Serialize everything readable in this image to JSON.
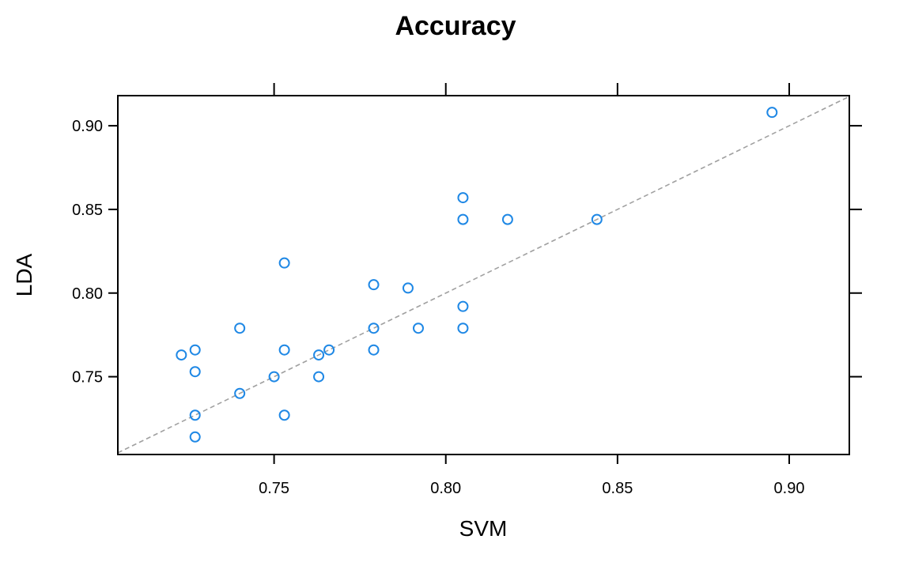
{
  "chart_data": {
    "type": "scatter",
    "title": "Accuracy",
    "xlabel": "SVM",
    "ylabel": "LDA",
    "xlim": [
      0.7045,
      0.9175
    ],
    "ylim": [
      0.7035,
      0.918
    ],
    "x_ticks": [
      "0.75",
      "0.80",
      "0.85",
      "0.90"
    ],
    "y_ticks": [
      "0.75",
      "0.80",
      "0.85",
      "0.90"
    ],
    "grid": false,
    "reference_line": "y = x (dashed)",
    "colors": {
      "points": "#1f88e5",
      "reference_line": "#a0a0a0"
    },
    "points": [
      {
        "x": 0.895,
        "y": 0.908
      },
      {
        "x": 0.805,
        "y": 0.857
      },
      {
        "x": 0.805,
        "y": 0.844
      },
      {
        "x": 0.818,
        "y": 0.844
      },
      {
        "x": 0.844,
        "y": 0.844
      },
      {
        "x": 0.753,
        "y": 0.818
      },
      {
        "x": 0.779,
        "y": 0.805
      },
      {
        "x": 0.789,
        "y": 0.803
      },
      {
        "x": 0.805,
        "y": 0.792
      },
      {
        "x": 0.74,
        "y": 0.779
      },
      {
        "x": 0.779,
        "y": 0.779
      },
      {
        "x": 0.792,
        "y": 0.779
      },
      {
        "x": 0.805,
        "y": 0.779
      },
      {
        "x": 0.727,
        "y": 0.766
      },
      {
        "x": 0.753,
        "y": 0.766
      },
      {
        "x": 0.766,
        "y": 0.766
      },
      {
        "x": 0.779,
        "y": 0.766
      },
      {
        "x": 0.723,
        "y": 0.763
      },
      {
        "x": 0.763,
        "y": 0.763
      },
      {
        "x": 0.727,
        "y": 0.753
      },
      {
        "x": 0.75,
        "y": 0.75
      },
      {
        "x": 0.763,
        "y": 0.75
      },
      {
        "x": 0.74,
        "y": 0.74
      },
      {
        "x": 0.727,
        "y": 0.727
      },
      {
        "x": 0.753,
        "y": 0.727
      },
      {
        "x": 0.727,
        "y": 0.714
      }
    ]
  }
}
